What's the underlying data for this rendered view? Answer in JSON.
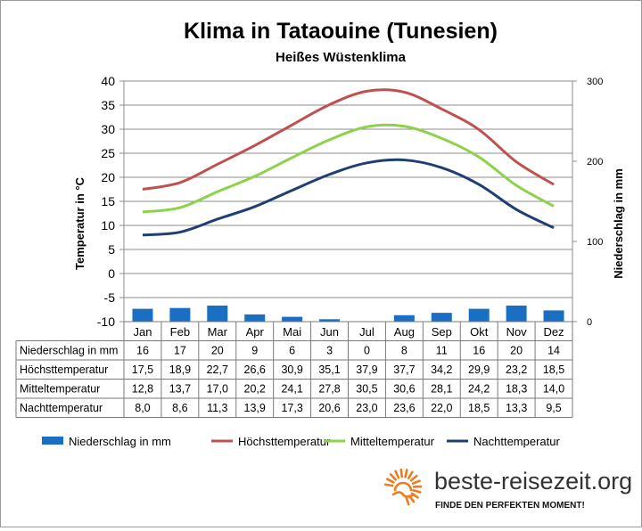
{
  "chart_data": {
    "type": "bar+line",
    "title": "Klima in Tataouine (Tunesien)",
    "subtitle": "Heißes Wüstenklima",
    "ylabel_left": "Temperatur in °C",
    "ylabel_right": "Niederschlag in mm",
    "ylim_left": [
      -10,
      40
    ],
    "yticks_left": [
      "40",
      "35",
      "30",
      "25",
      "20",
      "15",
      "10",
      "5",
      "0",
      "-5",
      "-10"
    ],
    "ylim_right": [
      0,
      300
    ],
    "yticks_right": [
      "300",
      "200",
      "100",
      "0"
    ],
    "grid": true,
    "legend_position": "bottom",
    "categories": [
      "Jan",
      "Feb",
      "Mar",
      "Apr",
      "Mai",
      "Jun",
      "Jul",
      "Aug",
      "Sep",
      "Okt",
      "Nov",
      "Dez"
    ],
    "series": [
      {
        "name": "Niederschlag in mm",
        "type": "bar",
        "axis": "right",
        "color": "#1a6fc2",
        "values": [
          16,
          17,
          20,
          9,
          6,
          3,
          0,
          8,
          11,
          16,
          20,
          14
        ],
        "labels": [
          "16",
          "17",
          "20",
          "9",
          "6",
          "3",
          "0",
          "8",
          "11",
          "16",
          "20",
          "14"
        ]
      },
      {
        "name": "Höchsttemperatur",
        "type": "line",
        "axis": "left",
        "color": "#c0504d",
        "values": [
          17.5,
          18.9,
          22.7,
          26.6,
          30.9,
          35.1,
          37.9,
          37.7,
          34.2,
          29.9,
          23.2,
          18.5
        ],
        "labels": [
          "17,5",
          "18,9",
          "22,7",
          "26,6",
          "30,9",
          "35,1",
          "37,9",
          "37,7",
          "34,2",
          "29,9",
          "23,2",
          "18,5"
        ]
      },
      {
        "name": "Mitteltemperatur",
        "type": "line",
        "axis": "left",
        "color": "#8ed14b",
        "values": [
          12.8,
          13.7,
          17.0,
          20.2,
          24.1,
          27.8,
          30.5,
          30.6,
          28.1,
          24.2,
          18.3,
          14.0
        ],
        "labels": [
          "12,8",
          "13,7",
          "17,0",
          "20,2",
          "24,1",
          "27,8",
          "30,5",
          "30,6",
          "28,1",
          "24,2",
          "18,3",
          "14,0"
        ]
      },
      {
        "name": "Nachttemperatur",
        "type": "line",
        "axis": "left",
        "color": "#1f3f73",
        "values": [
          8.0,
          8.6,
          11.3,
          13.9,
          17.3,
          20.6,
          23.0,
          23.6,
          22.0,
          18.5,
          13.3,
          9.5
        ],
        "labels": [
          "8,0",
          "8,6",
          "11,3",
          "13,9",
          "17,3",
          "20,6",
          "23,0",
          "23,6",
          "22,0",
          "18,5",
          "13,3",
          "9,5"
        ]
      }
    ]
  },
  "branding": {
    "site": "beste-reisezeit.org",
    "tagline": "FINDE DEN PERFEKTEN MOMENT!",
    "icon": "sun-icon",
    "accent_color": "#f07b1e"
  }
}
